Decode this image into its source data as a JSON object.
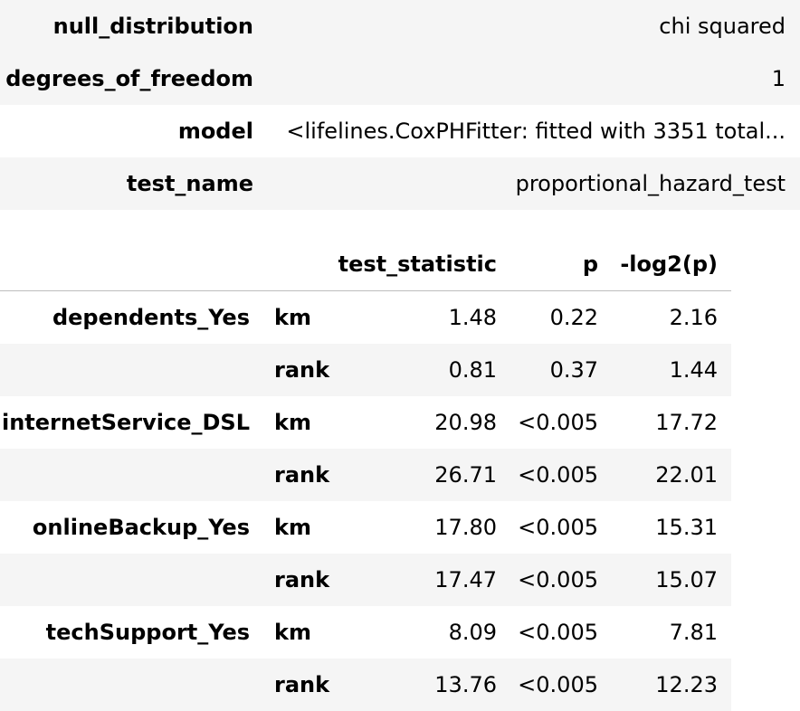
{
  "summary": [
    {
      "key": "null_distribution",
      "value": "chi squared"
    },
    {
      "key": "degrees_of_freedom",
      "value": "1"
    },
    {
      "key": "model",
      "value": "<lifelines.CoxPHFitter: fitted with 3351 total..."
    },
    {
      "key": "test_name",
      "value": "proportional_hazard_test"
    }
  ],
  "results": {
    "columns": [
      "test_statistic",
      "p",
      "-log2(p)"
    ],
    "rows": [
      {
        "covariate": "dependents_Yes",
        "transform": "km",
        "test_statistic": "1.48",
        "p": "0.22",
        "log2p": "2.16"
      },
      {
        "covariate": "",
        "transform": "rank",
        "test_statistic": "0.81",
        "p": "0.37",
        "log2p": "1.44"
      },
      {
        "covariate": "internetService_DSL",
        "transform": "km",
        "test_statistic": "20.98",
        "p": "<0.005",
        "log2p": "17.72"
      },
      {
        "covariate": "",
        "transform": "rank",
        "test_statistic": "26.71",
        "p": "<0.005",
        "log2p": "22.01"
      },
      {
        "covariate": "onlineBackup_Yes",
        "transform": "km",
        "test_statistic": "17.80",
        "p": "<0.005",
        "log2p": "15.31"
      },
      {
        "covariate": "",
        "transform": "rank",
        "test_statistic": "17.47",
        "p": "<0.005",
        "log2p": "15.07"
      },
      {
        "covariate": "techSupport_Yes",
        "transform": "km",
        "test_statistic": "8.09",
        "p": "<0.005",
        "log2p": "7.81"
      },
      {
        "covariate": "",
        "transform": "rank",
        "test_statistic": "13.76",
        "p": "<0.005",
        "log2p": "12.23"
      }
    ]
  }
}
